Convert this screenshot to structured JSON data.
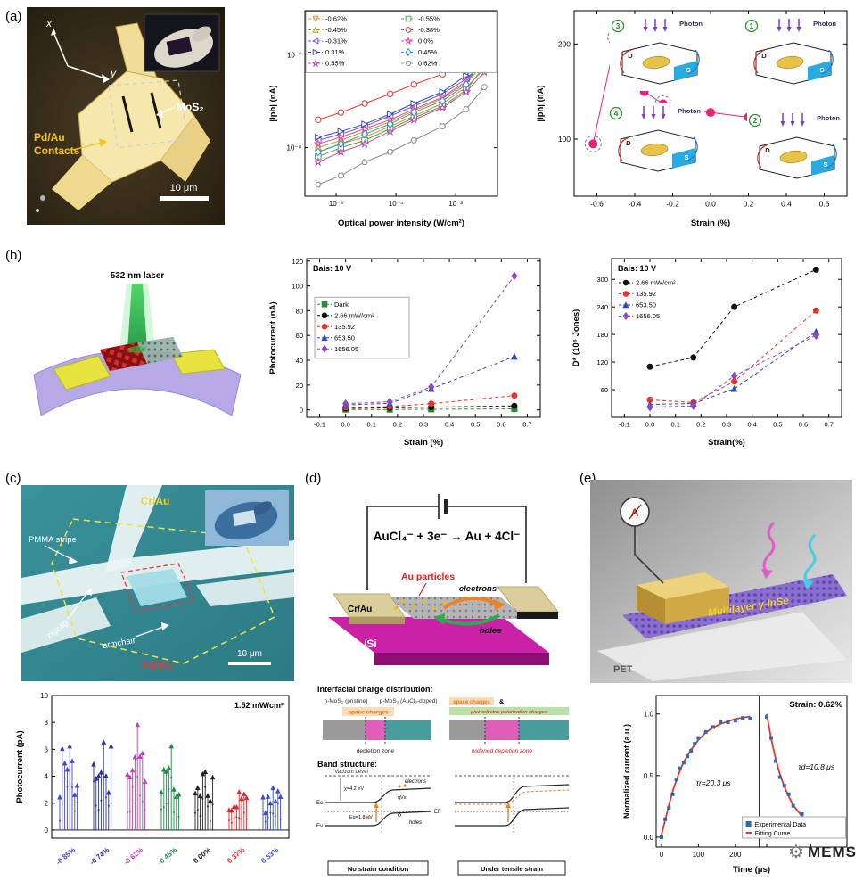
{
  "panels": {
    "a": "(a)",
    "b": "(b)",
    "c": "(c)",
    "d": "(d)",
    "e": "(e)"
  },
  "panel_a": {
    "micro": {
      "x": "x",
      "y": "y",
      "mos2": "MoS₂",
      "pd1": "Pd/Au",
      "pd2": "Contacts",
      "scale": "10 μm"
    },
    "insets": {
      "photon": "Photon",
      "d": "D",
      "s": "S",
      "nums": [
        "3",
        "1",
        "4",
        "2"
      ]
    }
  },
  "panel_b": {
    "laser": "532 nm laser"
  },
  "panel_c": {
    "micro": {
      "crau": "Cr/Au",
      "pmma": "PMMA stripe",
      "zigzag": "zigzag",
      "armchair": "armchair",
      "pdau": "Pd/Au",
      "scale": "10 μm"
    }
  },
  "panel_d": {
    "equation": "AuCl₄⁻ + 3e⁻ → Au + 4Cl⁻",
    "au_particles": "Au particles",
    "electrons": "electrons",
    "holes": "holes",
    "crau": "Cr/Au",
    "sio2": "SiO₂/Si",
    "lower": {
      "heading": "Interfacial charge distribution:",
      "n_label": "n-MoS₂ (pristine)",
      "p_label": "p-MoS₂ (AuCl₃-doped)",
      "sc": "space charges",
      "sc2": "space charges",
      "amp": "&",
      "pz": "piezoelectric polarization charges",
      "dz": "depletion zone",
      "wdz": "widened depletion zone",
      "band_heading": "Band structure:",
      "vac": "Vacuum Level",
      "electrons": "electrons",
      "holes": "holes",
      "hv": "hν",
      "chi": "χ=4.2 eV",
      "eg": "Eg=1.8 eV",
      "ec": "Ec",
      "ef": "EF",
      "ev": "Ev",
      "qvs": "qVs",
      "cap1": "No strain condition",
      "cap2": "Under tensile strain"
    }
  },
  "panel_e": {
    "meter": "A",
    "inse": "Multilayer γ-InSe",
    "pet": "PET"
  },
  "watermark": "MEMS",
  "chart_data": [
    {
      "id": "a_power",
      "type": "xy",
      "xscale": "log",
      "yscale": "log",
      "tickfs": 8,
      "xlabel": "Optical power intensity (W/cm²)",
      "ylabel": "|Iph| (nA)",
      "xlim": [
        3e-06,
        0.005
      ],
      "ylim": [
        3e-09,
        3e-07
      ],
      "xticks": [
        1e-05,
        0.0001,
        0.001
      ],
      "xtick_labels": [
        "10⁻⁵",
        "10⁻⁴",
        "10⁻³"
      ],
      "yticks": [
        1e-08,
        1e-07
      ],
      "ytick_labels": [
        "10⁻⁸",
        "10⁻⁷"
      ],
      "x": [
        5e-06,
        1.2e-05,
        3e-05,
        8e-05,
        0.0002,
        0.0006,
        0.0015,
        0.003
      ],
      "legend": {
        "position": "top",
        "cols": 2,
        "box": true
      },
      "marker_fill": "open",
      "marker_size": 3.2,
      "series": [
        {
          "name": "-0.62%",
          "color": "#f5821f",
          "marker": "triangle-down",
          "values": [
            9e-09,
            1.1e-08,
            1.3e-08,
            1.7e-08,
            2.2e-08,
            3e-08,
            4.5e-08,
            7e-08
          ]
        },
        {
          "name": "-0.55%",
          "color": "#46a546",
          "marker": "square",
          "values": [
            8e-09,
            1e-08,
            1.2e-08,
            1.6e-08,
            2.1e-08,
            2.8e-08,
            4.2e-08,
            7.5e-08
          ]
        },
        {
          "name": "-0.45%",
          "color": "#b5a117",
          "marker": "triangle-up",
          "values": [
            1e-08,
            1.2e-08,
            1.5e-08,
            1.9e-08,
            2.5e-08,
            3.4e-08,
            5e-08,
            8e-08
          ]
        },
        {
          "name": "-0.38%",
          "color": "#e8332a",
          "marker": "circle",
          "values": [
            2e-08,
            2.4e-08,
            3e-08,
            3.8e-08,
            4.8e-08,
            6.2e-08,
            8.5e-08,
            1.1e-07
          ]
        },
        {
          "name": "-0.31%",
          "color": "#7a52c7",
          "marker": "triangle-left",
          "values": [
            1.2e-08,
            1.4e-08,
            1.7e-08,
            2.2e-08,
            2.8e-08,
            3.8e-08,
            5.5e-08,
            8.5e-08
          ]
        },
        {
          "name": "0.0%",
          "color": "#e84393",
          "marker": "star",
          "values": [
            1.1e-08,
            1.3e-08,
            1.6e-08,
            2e-08,
            2.6e-08,
            3.5e-08,
            5.2e-08,
            9e-08
          ]
        },
        {
          "name": "0.31%",
          "color": "#2c4bb5",
          "marker": "triangle-right",
          "values": [
            1.3e-08,
            1.5e-08,
            1.8e-08,
            2.3e-08,
            3e-08,
            4e-08,
            6e-08,
            9.5e-08
          ]
        },
        {
          "name": "0.45%",
          "color": "#2196d4",
          "marker": "diamond",
          "values": [
            9e-09,
            1.1e-08,
            1.4e-08,
            1.8e-08,
            2.4e-08,
            3.2e-08,
            4.8e-08,
            1e-07
          ]
        },
        {
          "name": "0.55%",
          "color": "#b44bb4",
          "marker": "star",
          "values": [
            7e-09,
            9e-09,
            1.1e-08,
            1.5e-08,
            2e-08,
            2.7e-08,
            4e-08,
            6.5e-08
          ]
        },
        {
          "name": "0.62%",
          "color": "#8c8c8c",
          "marker": "hexagon",
          "values": [
            4e-09,
            5e-09,
            7e-09,
            9e-09,
            1.2e-08,
            1.7e-08,
            2.6e-08,
            4.5e-08
          ]
        }
      ]
    },
    {
      "id": "a_strain",
      "type": "xy",
      "tickfs": 8.5,
      "xlabel": "Strain (%)",
      "ylabel": "|Iph| (nA)",
      "xlim": [
        -0.72,
        0.72
      ],
      "ylim": [
        40,
        235
      ],
      "xticks": [
        -0.6,
        -0.4,
        -0.2,
        0.0,
        0.2,
        0.4,
        0.6
      ],
      "xtick_labels": [
        "-0.6",
        "-0.4",
        "-0.2",
        "0.0",
        "0.2",
        "0.4",
        "0.6"
      ],
      "yticks": [
        100,
        200
      ],
      "ytick_labels": [
        "100",
        "200"
      ],
      "marker_fill": "solid",
      "marker_size": 4.5,
      "series": [
        {
          "name": "|Iph|",
          "color": "#e8257d",
          "marker": "circle",
          "x": [
            -0.62,
            -0.5,
            -0.45,
            -0.35,
            -0.25,
            0.0,
            0.2,
            0.31,
            0.4,
            0.5,
            0.62
          ],
          "values": [
            95,
            207,
            205,
            150,
            137,
            128,
            123,
            120,
            118,
            114,
            76
          ],
          "circled": [
            0,
            1,
            4,
            9,
            10
          ]
        }
      ]
    },
    {
      "id": "b_photo",
      "type": "xy",
      "tickfs": 7.5,
      "title": "Bais: 10 V",
      "title_pos": "left",
      "xlabel": "Strain (%)",
      "ylabel": "Photocurrent (nA)",
      "xlim": [
        -0.15,
        0.75
      ],
      "ylim": [
        -6,
        122
      ],
      "xticks": [
        -0.1,
        0.0,
        0.1,
        0.2,
        0.3,
        0.4,
        0.5,
        0.6,
        0.7
      ],
      "xtick_labels": [
        "-0.1",
        "0.0",
        "0.1",
        "0.2",
        "0.3",
        "0.4",
        "0.5",
        "0.6",
        "0.7"
      ],
      "yticks": [
        0,
        20,
        40,
        60,
        80,
        100,
        120
      ],
      "ytick_labels": [
        "0",
        "20",
        "40",
        "60",
        "80",
        "100",
        "120"
      ],
      "x": [
        0.0,
        0.17,
        0.33,
        0.65
      ],
      "dash": true,
      "marker_fill": "solid",
      "marker_size": 3,
      "legend": {
        "position": "left",
        "cols": 1,
        "box": true
      },
      "series": [
        {
          "name": "Dark",
          "color": "#2e8b2e",
          "marker": "square",
          "values": [
            0.3,
            0.3,
            0.5,
            0.8
          ]
        },
        {
          "name": "2.66 mW/cm²",
          "color": "#111111",
          "marker": "circle",
          "values": [
            1.2,
            1.6,
            2.2,
            3.2
          ]
        },
        {
          "name": "135.92",
          "color": "#e8332a",
          "marker": "circle",
          "values": [
            2.0,
            2.6,
            5.0,
            11.5
          ]
        },
        {
          "name": "653.50",
          "color": "#2c4bb5",
          "marker": "triangle-up",
          "values": [
            4.0,
            5.2,
            17.0,
            43.0
          ]
        },
        {
          "name": "1656.05",
          "color": "#8a4bbf",
          "marker": "diamond",
          "values": [
            5.0,
            6.5,
            18.5,
            108.0
          ]
        }
      ]
    },
    {
      "id": "b_det",
      "type": "xy",
      "tickfs": 7.5,
      "title": "Bais: 10 V",
      "title_pos": "left",
      "xlabel": "Strain(%)",
      "ylabel": "D* (10⁶ Jones)",
      "xlim": [
        -0.15,
        0.75
      ],
      "ylim": [
        0,
        345
      ],
      "xticks": [
        -0.1,
        0.0,
        0.1,
        0.2,
        0.3,
        0.4,
        0.5,
        0.6,
        0.7
      ],
      "xtick_labels": [
        "-0.1",
        "0.0",
        "0.1",
        "0.2",
        "0.3",
        "0.4",
        "0.5",
        "0.6",
        "0.7"
      ],
      "yticks": [
        60,
        120,
        180,
        240,
        300
      ],
      "ytick_labels": [
        "60",
        "120",
        "180",
        "240",
        "300"
      ],
      "x": [
        0.0,
        0.17,
        0.33,
        0.65
      ],
      "dash": true,
      "marker_fill": "solid",
      "marker_size": 3,
      "legend": {
        "position": "topleft",
        "cols": 1,
        "box": false
      },
      "series": [
        {
          "name": "2.66 mW/cm²",
          "color": "#111111",
          "marker": "circle",
          "values": [
            110,
            130,
            240,
            321
          ]
        },
        {
          "name": "135.92",
          "color": "#e8332a",
          "marker": "circle",
          "values": [
            38,
            32,
            78,
            232
          ]
        },
        {
          "name": "653.50",
          "color": "#2c4bb5",
          "marker": "triangle-up",
          "values": [
            28,
            30,
            62,
            186
          ]
        },
        {
          "name": "1656.05",
          "color": "#8a4bbf",
          "marker": "diamond",
          "values": [
            22,
            25,
            90,
            178
          ]
        }
      ]
    },
    {
      "id": "c_photo",
      "type": "spikes",
      "annotation": "1.52 mW/cm²",
      "ylabel": "Photocurrent (pA)",
      "ylim": [
        -0.6,
        10
      ],
      "yticks": [
        0,
        2,
        4,
        6,
        8,
        10
      ],
      "ytick_labels": [
        "0",
        "2",
        "4",
        "6",
        "8",
        "10"
      ],
      "categories": [
        {
          "label": "-0.85%",
          "color": "#4646c8",
          "height": 6.1
        },
        {
          "label": "-0.74%",
          "color": "#26308f",
          "height": 6.4
        },
        {
          "label": "-0.62%",
          "color": "#b545b5",
          "height": 7.7
        },
        {
          "label": "-0.45%",
          "color": "#1f8a46",
          "height": 6.1
        },
        {
          "label": "0.00%",
          "color": "#222222",
          "height": 4.2
        },
        {
          "label": "0.37%",
          "color": "#e02828",
          "height": 2.7
        },
        {
          "label": "0.53%",
          "color": "#3a4bc8",
          "height": 3.0
        }
      ]
    },
    {
      "id": "e_resp",
      "type": "risedecay",
      "title": "Strain: 0.62%",
      "xlabel": "Time (μs)",
      "ylabel": "Normalized current (a.u.)",
      "yticks": [
        0.0,
        0.5,
        1.0
      ],
      "ytick_labels": [
        "0.0",
        "0.5",
        "1.0"
      ],
      "rise_xticks": [
        0,
        100,
        200
      ],
      "tau_rise": "τr=20.3 μs",
      "tau_decay": "τd=10.8 μs",
      "legend_items": [
        "Experimental Data",
        "Fitting Curve"
      ],
      "exp_color": "#2b6cb0",
      "fit_color": "#e8332a",
      "rise": {
        "x": [
          0,
          10,
          20,
          30,
          40,
          50,
          60,
          70,
          80,
          90,
          100,
          120,
          140,
          160,
          180,
          200,
          220,
          240
        ],
        "y": [
          0.02,
          0.14,
          0.26,
          0.37,
          0.46,
          0.54,
          0.61,
          0.66,
          0.71,
          0.75,
          0.79,
          0.85,
          0.89,
          0.92,
          0.94,
          0.96,
          0.97,
          0.98
        ]
      },
      "decay": {
        "x": [
          0,
          10,
          20,
          30,
          40,
          50,
          60,
          80,
          100,
          120,
          140,
          160
        ],
        "y": [
          1.0,
          0.8,
          0.64,
          0.51,
          0.41,
          0.33,
          0.26,
          0.17,
          0.11,
          0.07,
          0.05,
          0.03
        ]
      }
    }
  ]
}
